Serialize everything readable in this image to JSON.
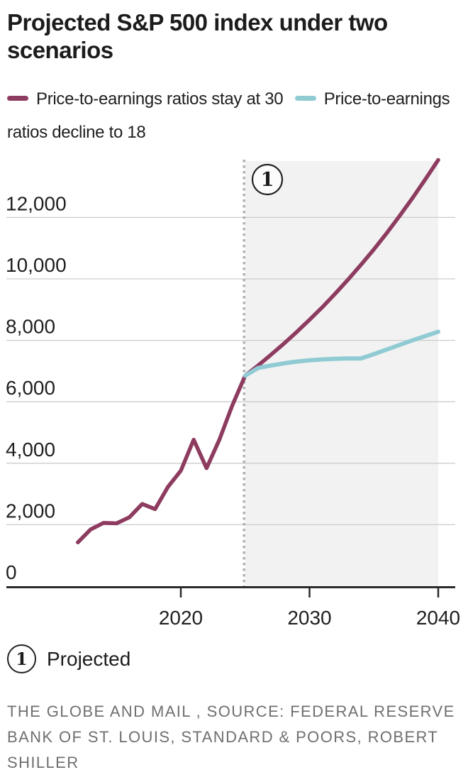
{
  "title": "Projected S&P 500 index under two scenarios",
  "legend": {
    "items": [
      {
        "label": "Price-to-earnings ratios stay at 30",
        "color": "#8d3c5f"
      },
      {
        "label": "Price-to-earnings ratios decline to 18",
        "color": "#90cbd4"
      }
    ]
  },
  "footnote": {
    "marker": "1",
    "label": "Projected"
  },
  "source_lines": [
    "THE GLOBE AND MAIL , SOURCE: FEDERAL RESERVE",
    "BANK OF ST. LOUIS, STANDARD & POORS, ROBERT",
    "SHILLER"
  ],
  "chart_data": {
    "type": "line",
    "title": "Projected S&P 500 index under two scenarios",
    "xlabel": "",
    "ylabel": "",
    "xlim": [
      2006.5,
      2041.3
    ],
    "ylim": [
      0,
      14200
    ],
    "grid": "horizontal",
    "legend_position": "top",
    "yticks": [
      0,
      2000,
      4000,
      6000,
      8000,
      10000,
      12000
    ],
    "ytick_labels": [
      "0",
      "2,000",
      "4,000",
      "6,000",
      "8,000",
      "10,000",
      "12,000"
    ],
    "xticks": [
      2020,
      2030,
      2040
    ],
    "xtick_labels": [
      "2020",
      "2030",
      "2040"
    ],
    "projection": {
      "start": 2025,
      "end": 2040,
      "marker": "1",
      "label": "Projected"
    },
    "series": [
      {
        "name": "Price-to-earnings ratios stay at 30",
        "color": "#8d3c5f",
        "x": [
          2012,
          2013,
          2014,
          2015,
          2016,
          2017,
          2018,
          2019,
          2020,
          2021,
          2022,
          2023,
          2024,
          2025,
          2026,
          2027,
          2028,
          2029,
          2030,
          2031,
          2032,
          2033,
          2034,
          2035,
          2036,
          2037,
          2038,
          2039,
          2040
        ],
        "values": [
          1426,
          1848,
          2059,
          2044,
          2239,
          2674,
          2507,
          3231,
          3756,
          4766,
          3840,
          4770,
          5882,
          6850,
          7180,
          7530,
          7890,
          8270,
          8670,
          9080,
          9520,
          9980,
          10460,
          10960,
          11490,
          12050,
          12630,
          13240,
          13870
        ]
      },
      {
        "name": "Price-to-earnings ratios decline to 18",
        "color": "#90cbd4",
        "x": [
          2025,
          2026,
          2027,
          2028,
          2029,
          2030,
          2031,
          2032,
          2033,
          2034,
          2035,
          2036,
          2037,
          2038,
          2039,
          2040
        ],
        "values": [
          6850,
          7100,
          7180,
          7250,
          7310,
          7350,
          7380,
          7400,
          7410,
          7410,
          7550,
          7700,
          7850,
          8000,
          8140,
          8280
        ]
      }
    ],
    "colors": {
      "projection_shade": "#f2f2f2",
      "gridline": "#cccccc",
      "axis": "#2b2b2b",
      "dotted_line": "#b0b0b0"
    }
  }
}
